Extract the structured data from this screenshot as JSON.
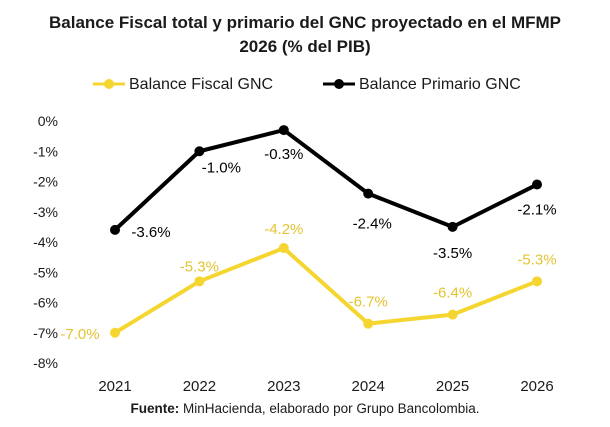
{
  "chart_data": {
    "type": "line",
    "title_lines": [
      "Balance Fiscal total y primario del GNC proyectado en el MFMP",
      "2026 (% del PIB)"
    ],
    "categories": [
      "2021",
      "2022",
      "2023",
      "2024",
      "2025",
      "2026"
    ],
    "ylim": [
      -8,
      0
    ],
    "yticks": [
      0,
      -1,
      -2,
      -3,
      -4,
      -5,
      -6,
      -7,
      -8
    ],
    "ytick_labels": [
      "0%",
      "-1%",
      "-2%",
      "-3%",
      "-4%",
      "-5%",
      "-6%",
      "-7%",
      "-8%"
    ],
    "legend_position": "top",
    "grid": false,
    "series": [
      {
        "name": "Balance Fiscal GNC",
        "color": "#f5d630",
        "label_color": "#e3c431",
        "values": [
          -7.0,
          -5.3,
          -4.2,
          -6.7,
          -6.4,
          -5.3
        ],
        "data_labels": [
          "-7.0%",
          "-5.3%",
          "-4.2%",
          "-6.7%",
          "-6.4%",
          "-5.3%"
        ]
      },
      {
        "name": "Balance Primario GNC",
        "color": "#000000",
        "label_color": "#000000",
        "values": [
          -3.6,
          -1.0,
          -0.3,
          -2.4,
          -3.5,
          -2.1
        ],
        "data_labels": [
          "-3.6%",
          "-1.0%",
          "-0.3%",
          "-2.4%",
          "-3.5%",
          "-2.1%"
        ]
      }
    ]
  },
  "source": {
    "label": "Fuente:",
    "text": " MinHacienda, elaborado por Grupo Bancolombia."
  }
}
